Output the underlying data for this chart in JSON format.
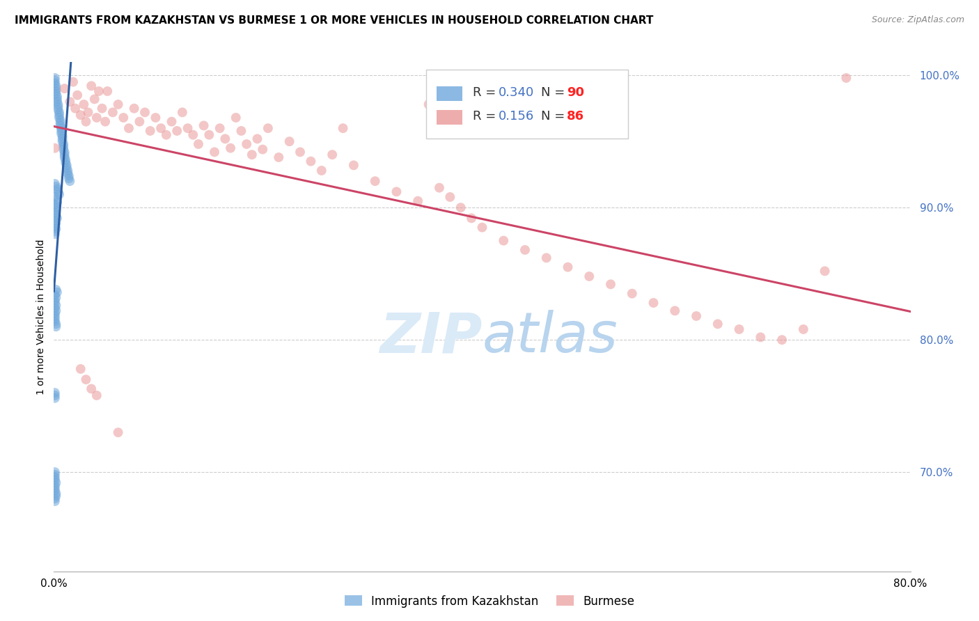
{
  "title": "IMMIGRANTS FROM KAZAKHSTAN VS BURMESE 1 OR MORE VEHICLES IN HOUSEHOLD CORRELATION CHART",
  "source": "Source: ZipAtlas.com",
  "ylabel": "1 or more Vehicles in Household",
  "legend1_label": "Immigrants from Kazakhstan",
  "legend2_label": "Burmese",
  "r1": "0.340",
  "n1": "90",
  "r2": "0.156",
  "n2": "86",
  "color_blue": "#6fa8dc",
  "color_pink": "#ea9999",
  "color_blue_line": "#2e5fa3",
  "color_pink_line": "#cc4466",
  "background_color": "#ffffff",
  "grid_color": "#cccccc",
  "watermark_color": "#daeaf7",
  "scatter_alpha": 0.55,
  "scatter_size": 100,
  "xlim": [
    0.0,
    0.8
  ],
  "ylim": [
    0.625,
    1.01
  ],
  "ytick_positions": [
    0.7,
    0.8,
    0.9,
    1.0
  ],
  "ytick_labels": [
    "70.0%",
    "80.0%",
    "90.0%",
    "100.0%"
  ],
  "xtick_positions": [
    0.0,
    0.1,
    0.2,
    0.3,
    0.4,
    0.5,
    0.6,
    0.7,
    0.8
  ],
  "xtick_labels": [
    "0.0%",
    "",
    "",
    "",
    "",
    "",
    "",
    "",
    "80.0%"
  ],
  "kazakhstan_x": [
    0.001,
    0.001,
    0.001,
    0.002,
    0.002,
    0.002,
    0.002,
    0.003,
    0.003,
    0.003,
    0.004,
    0.004,
    0.004,
    0.005,
    0.005,
    0.005,
    0.006,
    0.006,
    0.006,
    0.007,
    0.007,
    0.007,
    0.008,
    0.008,
    0.008,
    0.009,
    0.009,
    0.009,
    0.01,
    0.01,
    0.01,
    0.011,
    0.011,
    0.012,
    0.012,
    0.013,
    0.013,
    0.014,
    0.014,
    0.015,
    0.001,
    0.002,
    0.003,
    0.004,
    0.005,
    0.001,
    0.002,
    0.003,
    0.001,
    0.002,
    0.001,
    0.001,
    0.002,
    0.003,
    0.001,
    0.002,
    0.001,
    0.002,
    0.001,
    0.001,
    0.002,
    0.003,
    0.001,
    0.002,
    0.001,
    0.001,
    0.002,
    0.001,
    0.002,
    0.001,
    0.001,
    0.001,
    0.001,
    0.002,
    0.002,
    0.001,
    0.001,
    0.001,
    0.001,
    0.001,
    0.001,
    0.001,
    0.002,
    0.001,
    0.001,
    0.001,
    0.002,
    0.002,
    0.001,
    0.001
  ],
  "kazakhstan_y": [
    0.998,
    0.996,
    0.994,
    0.992,
    0.99,
    0.988,
    0.986,
    0.984,
    0.982,
    0.98,
    0.978,
    0.976,
    0.974,
    0.972,
    0.97,
    0.968,
    0.966,
    0.964,
    0.962,
    0.96,
    0.958,
    0.956,
    0.954,
    0.952,
    0.95,
    0.948,
    0.946,
    0.944,
    0.942,
    0.94,
    0.938,
    0.936,
    0.934,
    0.932,
    0.93,
    0.928,
    0.926,
    0.924,
    0.922,
    0.92,
    0.918,
    0.916,
    0.914,
    0.912,
    0.91,
    0.908,
    0.906,
    0.904,
    0.902,
    0.9,
    0.898,
    0.896,
    0.894,
    0.892,
    0.89,
    0.888,
    0.886,
    0.884,
    0.882,
    0.88,
    0.838,
    0.836,
    0.834,
    0.832,
    0.83,
    0.828,
    0.826,
    0.824,
    0.822,
    0.82,
    0.818,
    0.816,
    0.814,
    0.812,
    0.81,
    0.76,
    0.758,
    0.756,
    0.7,
    0.698,
    0.696,
    0.694,
    0.692,
    0.69,
    0.688,
    0.686,
    0.684,
    0.682,
    0.68,
    0.678
  ],
  "burmese_x": [
    0.001,
    0.01,
    0.015,
    0.018,
    0.02,
    0.022,
    0.025,
    0.028,
    0.03,
    0.032,
    0.035,
    0.038,
    0.04,
    0.042,
    0.045,
    0.048,
    0.05,
    0.055,
    0.06,
    0.065,
    0.07,
    0.075,
    0.08,
    0.085,
    0.09,
    0.095,
    0.1,
    0.105,
    0.11,
    0.115,
    0.12,
    0.125,
    0.13,
    0.135,
    0.14,
    0.145,
    0.15,
    0.155,
    0.16,
    0.165,
    0.17,
    0.175,
    0.18,
    0.185,
    0.19,
    0.195,
    0.2,
    0.21,
    0.22,
    0.23,
    0.24,
    0.25,
    0.26,
    0.27,
    0.28,
    0.3,
    0.32,
    0.34,
    0.35,
    0.36,
    0.37,
    0.38,
    0.39,
    0.4,
    0.42,
    0.44,
    0.46,
    0.48,
    0.5,
    0.52,
    0.54,
    0.56,
    0.58,
    0.6,
    0.62,
    0.64,
    0.66,
    0.68,
    0.7,
    0.72,
    0.025,
    0.03,
    0.035,
    0.04,
    0.06,
    0.74
  ],
  "burmese_y": [
    0.945,
    0.99,
    0.98,
    0.995,
    0.975,
    0.985,
    0.97,
    0.978,
    0.965,
    0.972,
    0.992,
    0.982,
    0.968,
    0.988,
    0.975,
    0.965,
    0.988,
    0.972,
    0.978,
    0.968,
    0.96,
    0.975,
    0.965,
    0.972,
    0.958,
    0.968,
    0.96,
    0.955,
    0.965,
    0.958,
    0.972,
    0.96,
    0.955,
    0.948,
    0.962,
    0.955,
    0.942,
    0.96,
    0.952,
    0.945,
    0.968,
    0.958,
    0.948,
    0.94,
    0.952,
    0.944,
    0.96,
    0.938,
    0.95,
    0.942,
    0.935,
    0.928,
    0.94,
    0.96,
    0.932,
    0.92,
    0.912,
    0.905,
    0.978,
    0.915,
    0.908,
    0.9,
    0.892,
    0.885,
    0.875,
    0.868,
    0.862,
    0.855,
    0.848,
    0.842,
    0.835,
    0.828,
    0.822,
    0.818,
    0.812,
    0.808,
    0.802,
    0.8,
    0.808,
    0.852,
    0.778,
    0.77,
    0.763,
    0.758,
    0.73,
    0.998
  ]
}
